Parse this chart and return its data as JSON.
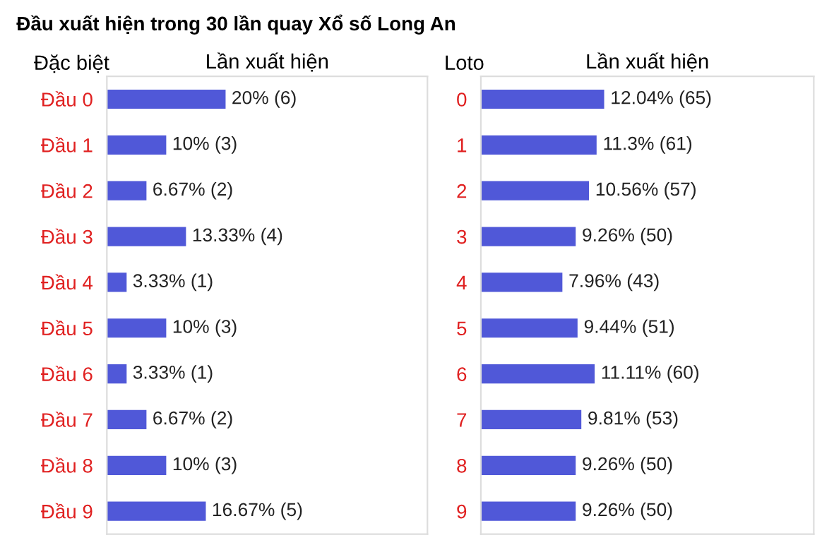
{
  "chart_data": [
    {
      "type": "bar",
      "orientation": "horizontal",
      "title": "Đầu xuất hiện trong 30 lần quay Xổ số Long An",
      "ylabel": "Đặc biệt",
      "xlabel": "Lần xuất hiện",
      "tick_labels": "y",
      "categories": [
        "Đầu 0",
        "Đầu 1",
        "Đầu 2",
        "Đầu 3",
        "Đầu 4",
        "Đầu 5",
        "Đầu 6",
        "Đầu 7",
        "Đầu 8",
        "Đầu 9"
      ],
      "values": [
        20,
        10,
        6.67,
        13.33,
        3.33,
        10,
        3.33,
        6.67,
        10,
        16.67
      ],
      "value_labels": [
        "20% (6)",
        "10% (3)",
        "6.67% (2)",
        "13.33% (4)",
        "3.33% (1)",
        "10% (3)",
        "3.33% (1)",
        "6.67% (2)",
        "10% (3)",
        "16.67% (5)"
      ],
      "color": "#5058d8"
    },
    {
      "type": "bar",
      "orientation": "horizontal",
      "ylabel": "Loto",
      "xlabel": "Lần xuất hiện",
      "tick_labels": "y",
      "categories": [
        "0",
        "1",
        "2",
        "3",
        "4",
        "5",
        "6",
        "7",
        "8",
        "9"
      ],
      "values": [
        12.04,
        11.3,
        10.56,
        9.26,
        7.96,
        9.44,
        11.11,
        9.81,
        9.26,
        9.26
      ],
      "value_labels": [
        "12.04% (65)",
        "11.3% (61)",
        "10.56% (57)",
        "9.26% (50)",
        "7.96% (43)",
        "9.44% (51)",
        "11.11% (60)",
        "9.81% (53)",
        "9.26% (50)",
        "9.26% (50)"
      ],
      "color": "#5058d8"
    }
  ]
}
